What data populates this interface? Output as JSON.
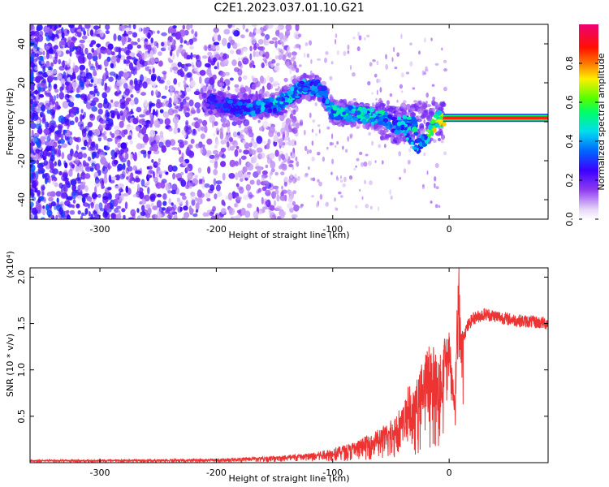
{
  "title": "C2E1.2023.037.01.10.G21",
  "chart_data": [
    {
      "type": "heatmap",
      "title": "C2E1.2023.037.01.10.G21",
      "xlabel": "Height of straight line (km)",
      "ylabel": "Frequency (Hz)",
      "xlim": [
        -360,
        85
      ],
      "ylim": [
        -50,
        50
      ],
      "xticks": [
        "-300",
        "-200",
        "-100",
        "0"
      ],
      "xtick_values": [
        -300,
        -200,
        -100,
        0
      ],
      "yticks": [
        "-40",
        "-20",
        "0",
        "20",
        "40"
      ],
      "ytick_values": [
        -40,
        -20,
        0,
        20,
        40
      ],
      "colorbar": {
        "label": "Normalized spectral amplitude",
        "range": [
          0,
          1
        ],
        "ticks": [
          "0.0",
          "0.2",
          "0.4",
          "0.6",
          "0.8"
        ],
        "tick_values": [
          0.0,
          0.2,
          0.4,
          0.6,
          0.8
        ],
        "colormap": "rainbow (white-violet-blue-cyan-green-yellow-red-magenta)"
      },
      "features": {
        "noise_region_x": [
          -360,
          -150
        ],
        "signal_band": [
          {
            "x": -205,
            "y": 10,
            "amp": 0.3
          },
          {
            "x": -180,
            "y": 7,
            "amp": 0.35
          },
          {
            "x": -150,
            "y": 8,
            "amp": 0.45
          },
          {
            "x": -125,
            "y": 18,
            "amp": 0.45
          },
          {
            "x": -110,
            "y": 17,
            "amp": 0.35
          },
          {
            "x": -100,
            "y": 5,
            "amp": 0.5
          },
          {
            "x": -80,
            "y": 4,
            "amp": 0.5
          },
          {
            "x": -60,
            "y": 2,
            "amp": 0.5
          },
          {
            "x": -45,
            "y": -2,
            "amp": 0.45
          },
          {
            "x": -30,
            "y": 0,
            "amp": 0.5
          },
          {
            "x": -27,
            "y": -13,
            "amp": 0.35
          },
          {
            "x": -10,
            "y": 1,
            "amp": 0.75
          },
          {
            "x": 0,
            "y": 2,
            "amp": 0.8
          },
          {
            "x": 40,
            "y": 2,
            "amp": 0.85
          },
          {
            "x": 80,
            "y": 2,
            "amp": 0.85
          }
        ],
        "steady_carrier": {
          "x_start": -5,
          "x_end": 85,
          "y": 2,
          "amp": 0.85
        }
      },
      "grid": false
    },
    {
      "type": "line",
      "xlabel": "Height of straight line (km)",
      "ylabel": "SNR (10 * v/v)",
      "yscale_note": "(x10⁴)",
      "xlim": [
        -360,
        85
      ],
      "ylim": [
        0,
        21000
      ],
      "xticks": [
        "-300",
        "-200",
        "-100",
        "0"
      ],
      "xtick_values": [
        -300,
        -200,
        -100,
        0
      ],
      "yticks": [
        "0.5",
        "1.0",
        "1.5",
        "2.0"
      ],
      "ytick_values": [
        5000,
        10000,
        15000,
        20000
      ],
      "color": "#ee3333",
      "envelope": {
        "x": [
          -360,
          -300,
          -250,
          -200,
          -150,
          -120,
          -100,
          -80,
          -60,
          -50,
          -40,
          -35,
          -30,
          -25,
          -20,
          -15,
          -10,
          -5,
          0,
          5,
          8,
          10,
          15,
          20,
          30,
          40,
          50,
          60,
          70,
          85
        ],
        "y": [
          300,
          300,
          350,
          400,
          700,
          1000,
          1500,
          2200,
          3500,
          4500,
          6000,
          8000,
          7500,
          10000,
          12000,
          12500,
          11000,
          12500,
          13000,
          7000,
          21000,
          13000,
          14500,
          15500,
          16000,
          15800,
          15500,
          15300,
          15200,
          15000
        ]
      },
      "grid": false
    }
  ]
}
